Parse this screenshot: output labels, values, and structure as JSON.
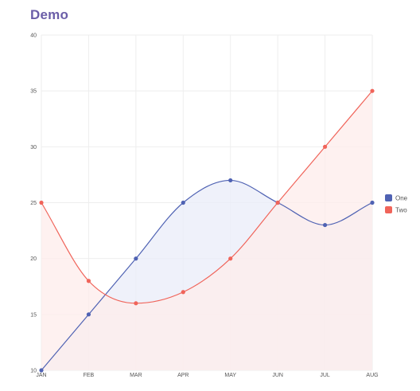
{
  "title": "Demo",
  "chart_data": {
    "type": "area",
    "categories": [
      "JAN",
      "FEB",
      "MAR",
      "APR",
      "MAY",
      "JUN",
      "JUL",
      "AUG"
    ],
    "series": [
      {
        "name": "One",
        "values": [
          10,
          15,
          20,
          25,
          27,
          25,
          23,
          25
        ],
        "color": "#4f62b3",
        "fill": "#e9ecf8"
      },
      {
        "name": "Two",
        "values": [
          25,
          18,
          16,
          17,
          20,
          25,
          30,
          35
        ],
        "color": "#f0645a",
        "fill": "#fdeceb"
      }
    ],
    "yticks": [
      10,
      15,
      20,
      25,
      30,
      35,
      40
    ],
    "ylim": [
      10,
      40
    ],
    "grid": true,
    "legend_position": "right",
    "title": "Demo"
  }
}
